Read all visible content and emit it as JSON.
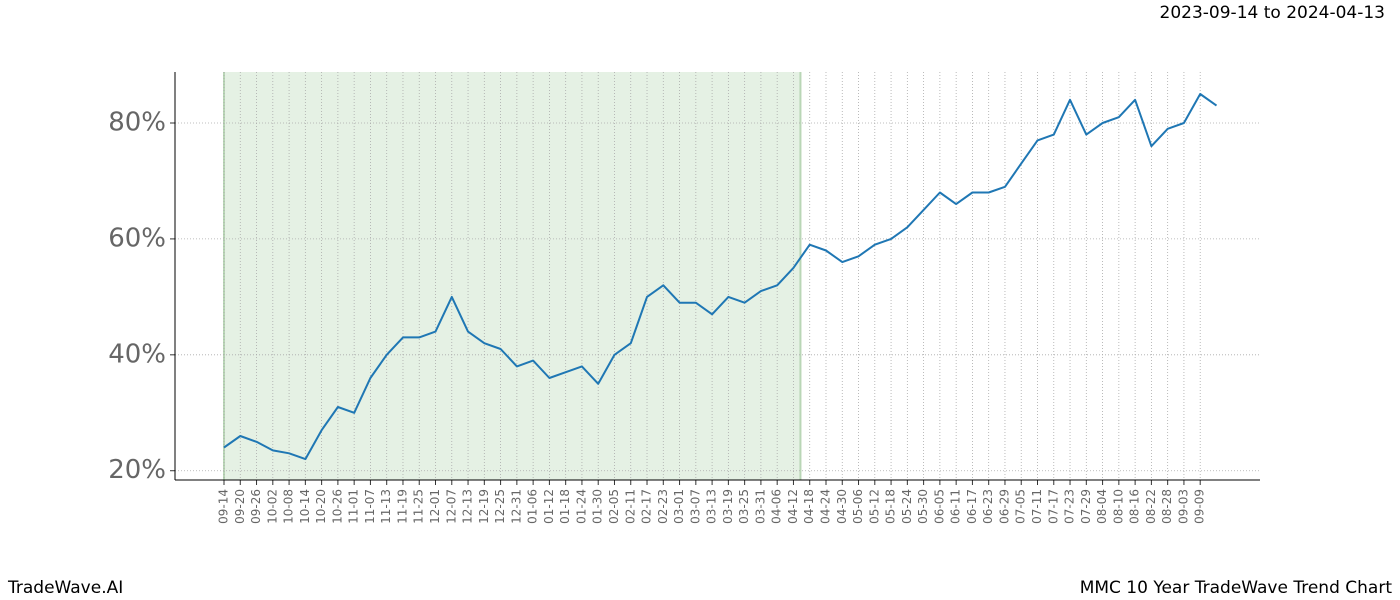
{
  "chart_data": {
    "type": "line",
    "range_title": "2023-09-14 to 2024-04-13",
    "brand": "TradeWave.AI",
    "title": "MMC 10 Year TradeWave Trend Chart",
    "categories": [
      "09-14",
      "09-20",
      "09-26",
      "10-02",
      "10-08",
      "10-14",
      "10-20",
      "10-26",
      "11-01",
      "11-07",
      "11-13",
      "11-19",
      "11-25",
      "12-01",
      "12-07",
      "12-13",
      "12-19",
      "12-25",
      "12-31",
      "01-06",
      "01-12",
      "01-18",
      "01-24",
      "01-30",
      "02-05",
      "02-11",
      "02-17",
      "02-23",
      "03-01",
      "03-07",
      "03-13",
      "03-19",
      "03-25",
      "03-31",
      "04-06",
      "04-12",
      "04-18",
      "04-24",
      "04-30",
      "05-06",
      "05-12",
      "05-18",
      "05-24",
      "05-30",
      "06-05",
      "06-11",
      "06-17",
      "06-23",
      "06-29",
      "07-05",
      "07-11",
      "07-17",
      "07-23",
      "07-29",
      "08-04",
      "08-10",
      "08-16",
      "08-22",
      "08-28",
      "09-03",
      "09-09",
      null
    ],
    "values": [
      24,
      26,
      25,
      23.5,
      23,
      22,
      27,
      31,
      30,
      36,
      40,
      43,
      43,
      44,
      50,
      44,
      42,
      41,
      38,
      39,
      36,
      37,
      38,
      35,
      40,
      42,
      50,
      52,
      49,
      49,
      47,
      50,
      49,
      51,
      52,
      55,
      59,
      58,
      56,
      57,
      59,
      60,
      62,
      65,
      68,
      66,
      68,
      68,
      69,
      73,
      77,
      78,
      84,
      78,
      80,
      81,
      84,
      76,
      79,
      80,
      85,
      83
    ],
    "color": "#1f77b4",
    "highlight": {
      "start": "09-14",
      "end": "04-12",
      "color": "#e5f1e4"
    },
    "ylim": [
      18.4,
      88.8
    ],
    "yticks": [
      {
        "value": 20,
        "label": "20%"
      },
      {
        "value": 40,
        "label": "40%"
      },
      {
        "value": 60,
        "label": "60%"
      },
      {
        "value": 80,
        "label": "80%"
      }
    ],
    "grid": true
  }
}
